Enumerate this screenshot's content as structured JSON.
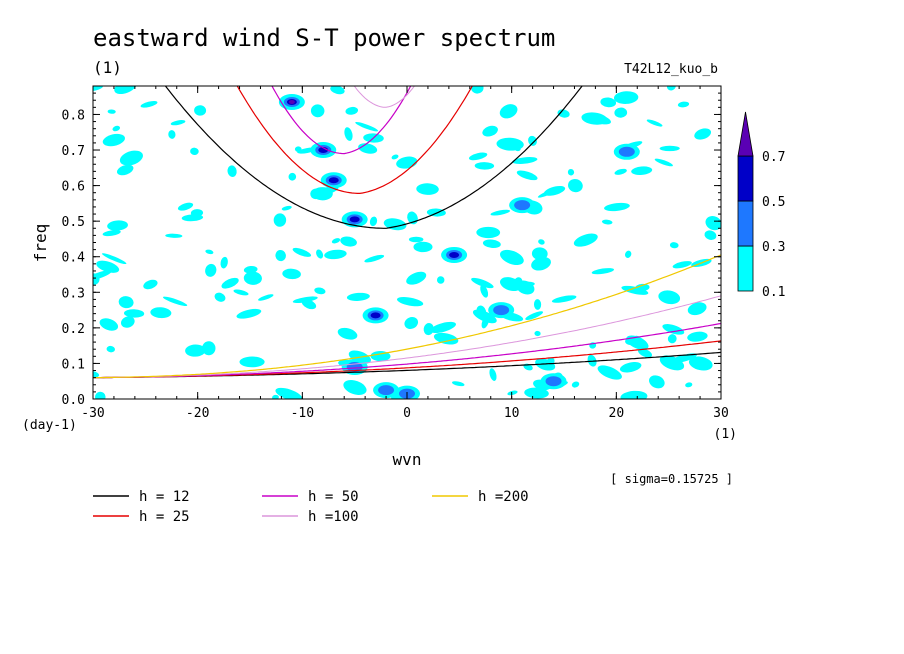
{
  "chart_data": {
    "type": "contour",
    "title": "eastward wind S-T power spectrum",
    "subtitle": "(1)",
    "run_label": "T42L12_kuo_b",
    "xlabel": "wvn",
    "x_unit": "(1)",
    "ylabel": "freq",
    "y_unit": "(day-1)",
    "xlim": [
      -30,
      30
    ],
    "ylim": [
      0,
      0.88
    ],
    "x_ticks": [
      -30,
      -20,
      -10,
      0,
      10,
      20,
      30
    ],
    "x_tick_labels": [
      "-30",
      "-20",
      "-10",
      "0",
      "10",
      "20",
      "30"
    ],
    "y_ticks": [
      0,
      0.1,
      0.2,
      0.3,
      0.4,
      0.5,
      0.6,
      0.7,
      0.8
    ],
    "y_tick_labels": [
      "0.0",
      "0.1",
      "0.2",
      "0.3",
      "0.4",
      "0.5",
      "0.6",
      "0.7",
      "0.8"
    ],
    "sigma_text": "[ sigma=0.15725 ]",
    "contour_levels": [
      0.1,
      0.3,
      0.5,
      0.7
    ],
    "colorbar": {
      "labels": [
        "0.1",
        "0.3",
        "0.5",
        "0.7"
      ],
      "colors": [
        "#00ffff",
        "#1e78ff",
        "#0000c8",
        "#5a00b4"
      ]
    },
    "series": [
      {
        "name": "h = 12",
        "color": "#000000",
        "family": "eig",
        "h": 12
      },
      {
        "name": "h = 25",
        "color": "#e60000",
        "family": "eig",
        "h": 25
      },
      {
        "name": "h = 50",
        "color": "#c800c8",
        "family": "eig",
        "h": 50
      },
      {
        "name": "h =100",
        "color": "#dc96dc",
        "family": "eig",
        "h": 100
      },
      {
        "name": "h = 12",
        "color": "#000000",
        "family": "kelvin",
        "h": 12
      },
      {
        "name": "h = 25",
        "color": "#e60000",
        "family": "kelvin",
        "h": 25
      },
      {
        "name": "h = 50",
        "color": "#c800c8",
        "family": "kelvin",
        "h": 50
      },
      {
        "name": "h =100",
        "color": "#dc96dc",
        "family": "kelvin",
        "h": 100
      },
      {
        "name": "h =200",
        "color": "#f0c800",
        "family": "kelvin",
        "h": 200
      }
    ],
    "legend": [
      {
        "label": "h = 12",
        "color": "#000000"
      },
      {
        "label": "h = 25",
        "color": "#e60000"
      },
      {
        "label": "h = 50",
        "color": "#c800c8"
      },
      {
        "label": "h =100",
        "color": "#dc96dc"
      },
      {
        "label": "h =200",
        "color": "#f0c800"
      }
    ],
    "legend_placement": "bottom-left",
    "spectral_peaks": [
      {
        "x": -11,
        "y": 0.835,
        "level": 0.7
      },
      {
        "x": -8,
        "y": 0.7,
        "level": 0.5
      },
      {
        "x": -7,
        "y": 0.615,
        "level": 0.5
      },
      {
        "x": -5,
        "y": 0.505,
        "level": 0.5
      },
      {
        "x": 4.5,
        "y": 0.405,
        "level": 0.5
      },
      {
        "x": -3,
        "y": 0.235,
        "level": 0.5
      },
      {
        "x": 9,
        "y": 0.25,
        "level": 0.3
      },
      {
        "x": -5,
        "y": 0.09,
        "level": 0.3
      },
      {
        "x": -2,
        "y": 0.025,
        "level": 0.3
      },
      {
        "x": 0,
        "y": 0.015,
        "level": 0.3
      },
      {
        "x": 21,
        "y": 0.695,
        "level": 0.3
      },
      {
        "x": 11,
        "y": 0.545,
        "level": 0.3
      },
      {
        "x": 14,
        "y": 0.05,
        "level": 0.3
      }
    ]
  }
}
